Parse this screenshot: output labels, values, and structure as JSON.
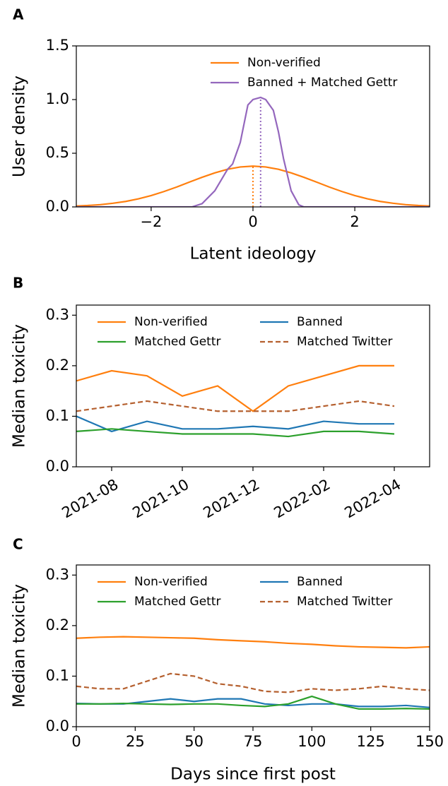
{
  "chart_data": [
    {
      "type": "line",
      "panel_label": "A",
      "x_label": "Latent ideology",
      "y_label": "User density",
      "xlim": [
        -3.47,
        3.47
      ],
      "xticks": [
        {
          "value": -2,
          "label": "−2"
        },
        0,
        2
      ],
      "ylim": [
        0,
        1.5
      ],
      "yticks": [
        {
          "value": 0,
          "label": "0.0"
        },
        0.5,
        {
          "value": 1,
          "label": "1.0"
        },
        1.5
      ],
      "legend": "upper right",
      "legend_columns": 1,
      "series": [
        {
          "name": "Non-verified",
          "color": "#ff7f0e",
          "linestyle": "solid",
          "median": 0,
          "x": [
            -3.5,
            -3.25,
            -3,
            -2.75,
            -2.5,
            -2.25,
            -2,
            -1.75,
            -1.5,
            -1.25,
            -1,
            -0.75,
            -0.5,
            -0.25,
            0,
            0.25,
            0.5,
            0.75,
            1,
            1.25,
            1.5,
            1.75,
            2,
            2.25,
            2.5,
            2.75,
            3,
            3.25,
            3.5
          ],
          "values": [
            0.008,
            0.013,
            0.021,
            0.034,
            0.051,
            0.075,
            0.106,
            0.143,
            0.185,
            0.231,
            0.276,
            0.317,
            0.351,
            0.372,
            0.38,
            0.372,
            0.351,
            0.317,
            0.276,
            0.231,
            0.185,
            0.143,
            0.106,
            0.075,
            0.051,
            0.034,
            0.021,
            0.013,
            0.008
          ]
        },
        {
          "name": "Banned + Matched Gettr",
          "color": "#9467bd",
          "linestyle": "solid",
          "median": 0.15,
          "x": [
            -3.5,
            -1.2,
            -1,
            -0.75,
            -0.5,
            -0.4,
            -0.25,
            -0.1,
            0,
            0.15,
            0.25,
            0.4,
            0.5,
            0.6,
            0.75,
            0.9,
            1,
            3.5
          ],
          "values": [
            0,
            0,
            0.03,
            0.15,
            0.35,
            0.4,
            0.6,
            0.95,
            1.0,
            1.02,
            1.0,
            0.9,
            0.7,
            0.45,
            0.15,
            0.02,
            0,
            0
          ]
        }
      ]
    },
    {
      "type": "line",
      "panel_label": "B",
      "y_label": "Median toxicity",
      "x_format": "month",
      "xlim": [
        "2021-07",
        "2022-05"
      ],
      "xticks": [
        "2021-08",
        "2021-10",
        "2021-12",
        "2022-02",
        "2022-04"
      ],
      "ylim": [
        0,
        0.32
      ],
      "yticks": [
        {
          "value": 0,
          "label": "0.0"
        },
        0.1,
        0.2,
        0.3
      ],
      "legend": "upper center",
      "legend_columns": 2,
      "x": [
        "2021-07",
        "2021-08",
        "2021-09",
        "2021-10",
        "2021-11",
        "2021-12",
        "2022-01",
        "2022-02",
        "2022-03",
        "2022-04"
      ],
      "series": [
        {
          "name": "Non-verified",
          "color": "#ff7f0e",
          "linestyle": "solid",
          "values": [
            0.17,
            0.19,
            0.18,
            0.14,
            0.16,
            0.11,
            0.16,
            0.18,
            0.2,
            0.2
          ]
        },
        {
          "name": "Banned",
          "color": "#1f77b4",
          "linestyle": "solid",
          "values": [
            0.1,
            0.07,
            0.09,
            0.075,
            0.075,
            0.08,
            0.075,
            0.09,
            0.085,
            0.085
          ]
        },
        {
          "name": "Matched Gettr",
          "color": "#2ca02c",
          "linestyle": "solid",
          "values": [
            0.07,
            0.075,
            0.07,
            0.065,
            0.065,
            0.065,
            0.06,
            0.07,
            0.07,
            0.065
          ]
        },
        {
          "name": "Matched Twitter",
          "color": "#b5602f",
          "linestyle": "dashed",
          "values": [
            0.11,
            0.12,
            0.13,
            0.12,
            0.11,
            0.11,
            0.11,
            0.12,
            0.13,
            0.12
          ]
        }
      ]
    },
    {
      "type": "line",
      "panel_label": "C",
      "x_label": "Days since first post",
      "y_label": "Median toxicity",
      "xlim": [
        0,
        150
      ],
      "xticks": [
        0,
        25,
        50,
        75,
        100,
        125,
        150
      ],
      "ylim": [
        0,
        0.32
      ],
      "yticks": [
        {
          "value": 0,
          "label": "0.0"
        },
        0.1,
        0.2,
        0.3
      ],
      "legend": "upper center",
      "legend_columns": 2,
      "x": [
        0,
        10,
        20,
        30,
        40,
        50,
        60,
        70,
        80,
        90,
        100,
        110,
        120,
        130,
        140,
        150
      ],
      "series": [
        {
          "name": "Non-verified",
          "color": "#ff7f0e",
          "linestyle": "solid",
          "values": [
            0.175,
            0.177,
            0.178,
            0.177,
            0.176,
            0.175,
            0.172,
            0.17,
            0.168,
            0.165,
            0.163,
            0.16,
            0.158,
            0.157,
            0.156,
            0.158
          ]
        },
        {
          "name": "Banned",
          "color": "#1f77b4",
          "linestyle": "solid",
          "values": [
            0.046,
            0.045,
            0.045,
            0.05,
            0.055,
            0.05,
            0.055,
            0.055,
            0.045,
            0.042,
            0.045,
            0.045,
            0.04,
            0.04,
            0.042,
            0.038
          ]
        },
        {
          "name": "Matched Gettr",
          "color": "#2ca02c",
          "linestyle": "solid",
          "values": [
            0.045,
            0.045,
            0.046,
            0.045,
            0.044,
            0.045,
            0.045,
            0.042,
            0.04,
            0.045,
            0.06,
            0.045,
            0.035,
            0.035,
            0.036,
            0.035
          ]
        },
        {
          "name": "Matched Twitter",
          "color": "#b5602f",
          "linestyle": "dashed",
          "values": [
            0.08,
            0.075,
            0.075,
            0.09,
            0.105,
            0.1,
            0.085,
            0.08,
            0.07,
            0.068,
            0.075,
            0.072,
            0.075,
            0.08,
            0.075,
            0.072
          ]
        }
      ]
    }
  ]
}
